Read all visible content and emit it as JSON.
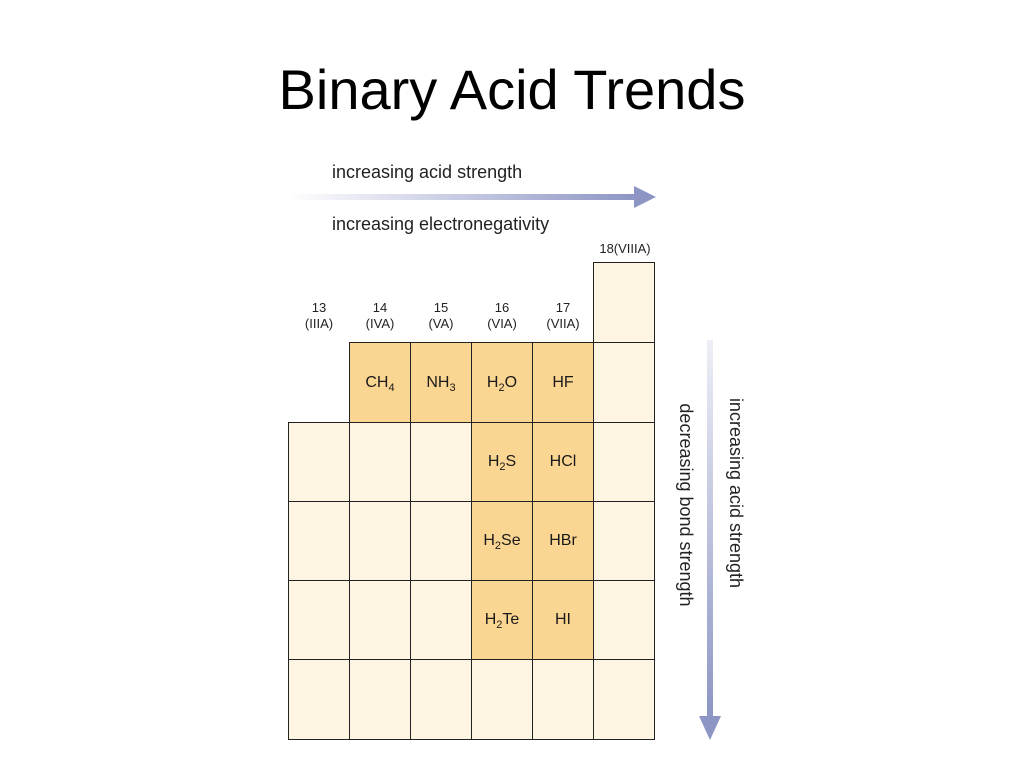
{
  "title": "Binary Acid Trends",
  "top_arrow": {
    "label_above": "increasing acid strength",
    "label_below": "increasing electronegativity",
    "color": "#8d95c4"
  },
  "side_arrow": {
    "label_left": "decreasing bond strength",
    "label_right": "increasing acid strength",
    "color": "#8d95c4"
  },
  "group_headers": [
    {
      "num": "13",
      "roman": "(IIIA)"
    },
    {
      "num": "14",
      "roman": "(IVA)"
    },
    {
      "num": "15",
      "roman": "(VA)"
    },
    {
      "num": "16",
      "roman": "(VIA)"
    },
    {
      "num": "17",
      "roman": "(VIIA)"
    }
  ],
  "group18_header": "18(VIIIA)",
  "compounds": {
    "CH4": {
      "base": "CH",
      "sub": "4",
      "post": ""
    },
    "NH3": {
      "base": "NH",
      "sub": "3",
      "post": ""
    },
    "H2O": {
      "base": "H",
      "sub": "2",
      "post": "O"
    },
    "HF": {
      "base": "HF",
      "sub": "",
      "post": ""
    },
    "H2S": {
      "base": "H",
      "sub": "2",
      "post": "S"
    },
    "HCl": {
      "base": "HCl",
      "sub": "",
      "post": ""
    },
    "H2Se": {
      "base": "H",
      "sub": "2",
      "post": "Se"
    },
    "HBr": {
      "base": "HBr",
      "sub": "",
      "post": ""
    },
    "H2Te": {
      "base": "H",
      "sub": "2",
      "post": "Te"
    },
    "HI": {
      "base": "HI",
      "sub": "",
      "post": ""
    }
  },
  "colors": {
    "highlight_cell": "#fbd692",
    "plain_cell": "#fdf4e2",
    "border": "#222222"
  }
}
